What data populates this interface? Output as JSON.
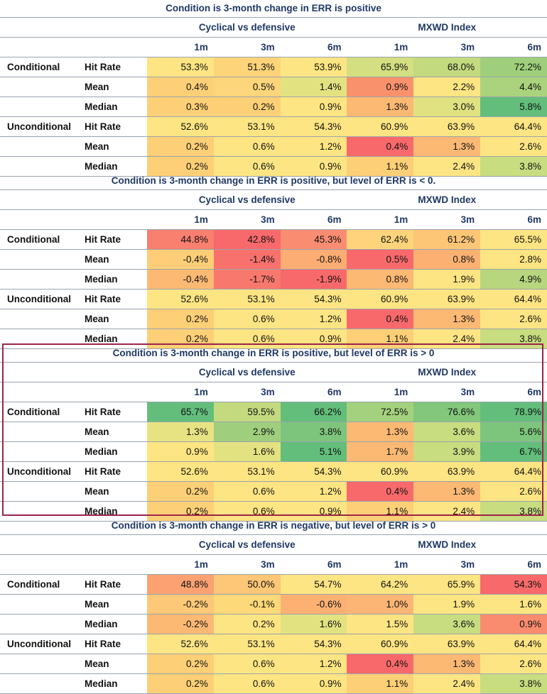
{
  "group_labels": [
    "Cyclical vs defensive",
    "MXWD Index"
  ],
  "period_labels": [
    "1m",
    "3m",
    "6m",
    "1m",
    "3m",
    "6m"
  ],
  "sections": [
    {
      "title": "Condition is 3-month change in ERR is positive",
      "rows": [
        {
          "label": "Conditional",
          "metric": "Hit Rate",
          "values": [
            "53.3%",
            "51.3%",
            "53.9%",
            "65.9%",
            "68.0%",
            "72.2%"
          ],
          "colors": [
            "#fee583",
            "#fdd47a",
            "#fee583",
            "#d3df80",
            "#c3da7f",
            "#9fcf7c"
          ]
        },
        {
          "label": "",
          "metric": "Mean",
          "values": [
            "0.4%",
            "0.5%",
            "1.4%",
            "0.9%",
            "2.2%",
            "4.4%"
          ],
          "colors": [
            "#fdd077",
            "#fdd57b",
            "#e3e281",
            "#f9926c",
            "#fee583",
            "#abd37d"
          ]
        },
        {
          "label": "",
          "metric": "Median",
          "values": [
            "0.3%",
            "0.2%",
            "0.9%",
            "1.3%",
            "3.0%",
            "5.8%"
          ],
          "colors": [
            "#fdd077",
            "#fdd077",
            "#fee583",
            "#fcb974",
            "#e0e282",
            "#63be7b"
          ]
        },
        {
          "label": "Unconditional",
          "metric": "Hit Rate",
          "values": [
            "52.6%",
            "53.1%",
            "54.3%",
            "60.9%",
            "63.9%",
            "64.4%"
          ],
          "colors": [
            "#fee583",
            "#fee583",
            "#fee583",
            "#fee583",
            "#fee583",
            "#fee583"
          ]
        },
        {
          "label": "",
          "metric": "Mean",
          "values": [
            "0.2%",
            "0.6%",
            "1.2%",
            "0.4%",
            "1.3%",
            "2.6%"
          ],
          "colors": [
            "#fdcf77",
            "#fee583",
            "#fee583",
            "#f8696b",
            "#fcb974",
            "#fee583"
          ]
        },
        {
          "label": "",
          "metric": "Median",
          "values": [
            "0.2%",
            "0.6%",
            "0.9%",
            "1.1%",
            "2.4%",
            "3.8%"
          ],
          "colors": [
            "#fdd077",
            "#fee583",
            "#fee583",
            "#fdcf77",
            "#fee583",
            "#c8dc80"
          ]
        }
      ]
    },
    {
      "title": "Condition is 3-month change in ERR is positive, but level of ERR is < 0.",
      "rows": [
        {
          "label": "Conditional",
          "metric": "Hit Rate",
          "values": [
            "44.8%",
            "42.8%",
            "45.3%",
            "62.4%",
            "61.2%",
            "65.5%"
          ],
          "colors": [
            "#f97f6f",
            "#f8696b",
            "#fa8d71",
            "#fdd47b",
            "#fdc676",
            "#fee583"
          ]
        },
        {
          "label": "",
          "metric": "Mean",
          "values": [
            "-0.4%",
            "-1.4%",
            "-0.8%",
            "0.5%",
            "0.8%",
            "2.8%"
          ],
          "colors": [
            "#fdce77",
            "#f8716c",
            "#fcad73",
            "#f8696b",
            "#fcb173",
            "#fee583"
          ]
        },
        {
          "label": "",
          "metric": "Median",
          "values": [
            "-0.4%",
            "-1.7%",
            "-1.9%",
            "0.8%",
            "1.9%",
            "4.9%"
          ],
          "colors": [
            "#fcb974",
            "#f8786d",
            "#f8696b",
            "#fcb974",
            "#fee583",
            "#b7d67e"
          ]
        },
        {
          "label": "Unconditional",
          "metric": "Hit Rate",
          "values": [
            "52.6%",
            "53.1%",
            "54.3%",
            "60.9%",
            "63.9%",
            "64.4%"
          ],
          "colors": [
            "#fee583",
            "#fee583",
            "#fee583",
            "#fee583",
            "#fee583",
            "#fee583"
          ]
        },
        {
          "label": "",
          "metric": "Mean",
          "values": [
            "0.2%",
            "0.6%",
            "1.2%",
            "0.4%",
            "1.3%",
            "2.6%"
          ],
          "colors": [
            "#fdcf77",
            "#fee583",
            "#fee583",
            "#f8696b",
            "#fcb974",
            "#fee583"
          ]
        },
        {
          "label": "",
          "metric": "Median",
          "values": [
            "0.2%",
            "0.6%",
            "0.9%",
            "1.1%",
            "2.4%",
            "3.8%"
          ],
          "colors": [
            "#fdd077",
            "#fee583",
            "#fee583",
            "#fdcf77",
            "#fee583",
            "#c8dc80"
          ]
        }
      ]
    },
    {
      "title": "Condition is 3-month change in ERR is positive, but level of ERR is > 0",
      "highlight_color": "#9c2449",
      "rows": [
        {
          "label": "Conditional",
          "metric": "Hit Rate",
          "values": [
            "65.7%",
            "59.5%",
            "66.2%",
            "72.5%",
            "76.6%",
            "78.9%"
          ],
          "colors": [
            "#63be7b",
            "#c3da7f",
            "#63be7b",
            "#a4d17d",
            "#82c77c",
            "#63be7b"
          ]
        },
        {
          "label": "",
          "metric": "Mean",
          "values": [
            "1.3%",
            "2.9%",
            "3.8%",
            "1.3%",
            "3.6%",
            "5.6%"
          ],
          "colors": [
            "#e7e382",
            "#9fcf7c",
            "#7dc57c",
            "#fcb974",
            "#c8dc80",
            "#7dc57c"
          ]
        },
        {
          "label": "",
          "metric": "Median",
          "values": [
            "0.9%",
            "1.6%",
            "5.1%",
            "1.7%",
            "3.9%",
            "6.7%"
          ],
          "colors": [
            "#fee583",
            "#e3e281",
            "#63be7b",
            "#fcb974",
            "#c8dc80",
            "#63be7b"
          ]
        },
        {
          "label": "Unconditional",
          "metric": "Hit Rate",
          "values": [
            "52.6%",
            "53.1%",
            "54.3%",
            "60.9%",
            "63.9%",
            "64.4%"
          ],
          "colors": [
            "#fee583",
            "#fee583",
            "#fee583",
            "#fee583",
            "#fee583",
            "#fee583"
          ]
        },
        {
          "label": "",
          "metric": "Mean",
          "values": [
            "0.2%",
            "0.6%",
            "1.2%",
            "0.4%",
            "1.3%",
            "2.6%"
          ],
          "colors": [
            "#fdcf77",
            "#fee583",
            "#fee583",
            "#f8696b",
            "#fcb974",
            "#fee583"
          ]
        },
        {
          "label": "",
          "metric": "Median",
          "values": [
            "0.2%",
            "0.6%",
            "0.9%",
            "1.1%",
            "2.4%",
            "3.8%"
          ],
          "colors": [
            "#fdd077",
            "#fee583",
            "#fee583",
            "#fdcf77",
            "#fee583",
            "#c8dc80"
          ]
        }
      ]
    },
    {
      "title": "Condition is 3-month change in ERR is negative, but level of ERR is > 0",
      "rows": [
        {
          "label": "Conditional",
          "metric": "Hit Rate",
          "values": [
            "48.8%",
            "50.0%",
            "54.7%",
            "64.2%",
            "65.9%",
            "54.3%"
          ],
          "colors": [
            "#fba172",
            "#fdc777",
            "#fee583",
            "#fee583",
            "#fee583",
            "#f8696b"
          ]
        },
        {
          "label": "",
          "metric": "Mean",
          "values": [
            "-0.2%",
            "-0.1%",
            "-0.6%",
            "1.0%",
            "1.9%",
            "1.6%"
          ],
          "colors": [
            "#fdc877",
            "#fed979",
            "#fcb173",
            "#fcb574",
            "#fee583",
            "#fee583"
          ]
        },
        {
          "label": "",
          "metric": "Median",
          "values": [
            "-0.2%",
            "0.2%",
            "1.6%",
            "1.5%",
            "3.6%",
            "0.9%"
          ],
          "colors": [
            "#fcb974",
            "#fee583",
            "#e3e281",
            "#fee583",
            "#c8dc80",
            "#f98b6f"
          ]
        },
        {
          "label": "Unconditional",
          "metric": "Hit Rate",
          "values": [
            "52.6%",
            "53.1%",
            "54.3%",
            "60.9%",
            "63.9%",
            "64.4%"
          ],
          "colors": [
            "#fee583",
            "#fee583",
            "#fee583",
            "#fee583",
            "#fee583",
            "#fee583"
          ]
        },
        {
          "label": "",
          "metric": "Mean",
          "values": [
            "0.2%",
            "0.6%",
            "1.2%",
            "0.4%",
            "1.3%",
            "2.6%"
          ],
          "colors": [
            "#fdcf77",
            "#fee583",
            "#fee583",
            "#f8696b",
            "#fcb974",
            "#fee583"
          ]
        },
        {
          "label": "",
          "metric": "Median",
          "values": [
            "0.2%",
            "0.6%",
            "0.9%",
            "1.1%",
            "2.4%",
            "3.8%"
          ],
          "colors": [
            "#fdd077",
            "#fee583",
            "#fee583",
            "#fdcf77",
            "#fee583",
            "#c8dc80"
          ]
        }
      ]
    }
  ]
}
